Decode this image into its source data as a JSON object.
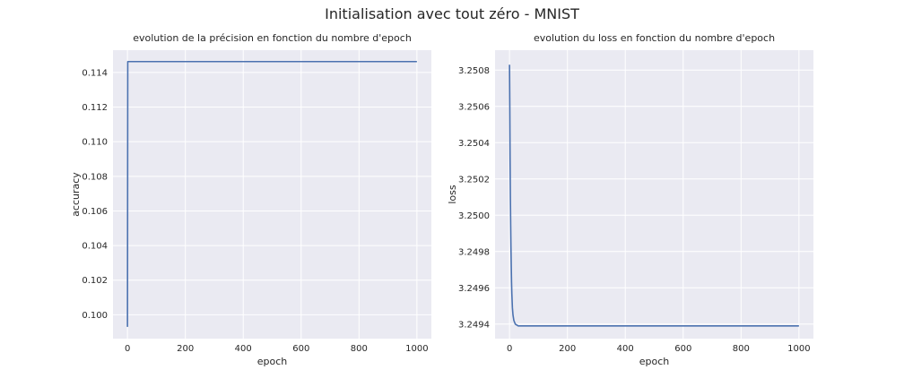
{
  "figure": {
    "suptitle": "Initialisation avec tout zéro - MNIST"
  },
  "colors": {
    "axes_bg": "#EAEAF2",
    "grid": "#FFFFFF",
    "line": "#4C72B0",
    "text": "#262626"
  },
  "chart_data": [
    {
      "type": "line",
      "title": "evolution de la précision en fonction du nombre d'epoch",
      "xlabel": "epoch",
      "ylabel": "accuracy",
      "xlim": [
        -50,
        1050
      ],
      "ylim": [
        0.09862,
        0.11529
      ],
      "xticks": [
        0,
        200,
        400,
        600,
        800,
        1000
      ],
      "xtick_labels": [
        "0",
        "200",
        "400",
        "600",
        "800",
        "1000"
      ],
      "yticks": [
        0.1,
        0.102,
        0.104,
        0.106,
        0.108,
        0.11,
        0.112,
        0.114
      ],
      "ytick_labels": [
        "0.100",
        "0.102",
        "0.104",
        "0.106",
        "0.108",
        "0.110",
        "0.112",
        "0.114"
      ],
      "grid": true,
      "series": [
        {
          "x": [
            0,
            1,
            2,
            1000
          ],
          "y": [
            0.0993,
            0.11463,
            0.11463,
            0.11463
          ]
        }
      ]
    },
    {
      "type": "line",
      "title": "evolution du loss en fonction du nombre d'epoch",
      "xlabel": "epoch",
      "ylabel": "loss",
      "xlim": [
        -50,
        1050
      ],
      "ylim": [
        3.24932,
        3.25091
      ],
      "xticks": [
        0,
        200,
        400,
        600,
        800,
        1000
      ],
      "xtick_labels": [
        "0",
        "200",
        "400",
        "600",
        "800",
        "1000"
      ],
      "yticks": [
        3.2494,
        3.2496,
        3.2498,
        3.25,
        3.2502,
        3.2504,
        3.2506,
        3.2508
      ],
      "ytick_labels": [
        "3.2494",
        "3.2496",
        "3.2498",
        "3.2500",
        "3.2502",
        "3.2504",
        "3.2506",
        "3.2508"
      ],
      "grid": true,
      "series": [
        {
          "x": [
            0,
            1,
            2,
            3,
            4,
            5,
            6,
            7,
            8,
            10,
            12,
            15,
            20,
            30,
            50,
            1000
          ],
          "y": [
            3.25083,
            3.2506,
            3.2503,
            3.2501,
            3.24995,
            3.24982,
            3.24972,
            3.24963,
            3.24957,
            3.24949,
            3.24945,
            3.24942,
            3.2494,
            3.24939,
            3.24939,
            3.24939
          ]
        }
      ]
    }
  ]
}
